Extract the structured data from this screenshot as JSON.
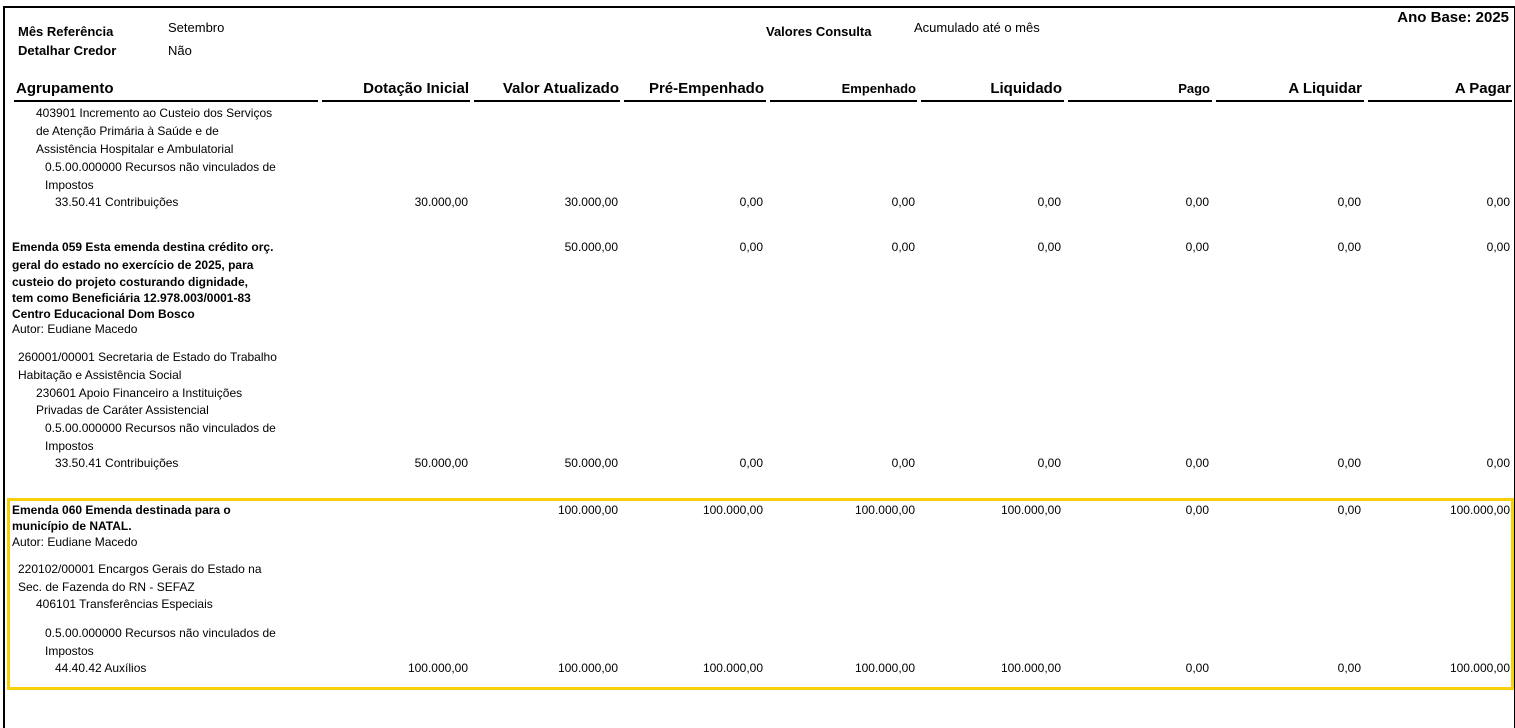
{
  "report": {
    "ano_base": "Ano Base: 2025",
    "mes_referencia_label": "Mês Referência",
    "mes_referencia_value": "Setembro",
    "detalhar_credor_label": "Detalhar Credor",
    "detalhar_credor_value": "Não",
    "valores_consulta_label": "Valores Consulta",
    "valores_consulta_value": "Acumulado até o mês"
  },
  "columns": [
    "Agrupamento",
    "Dotação Inicial",
    "Valor Atualizado",
    "Pré-Empenhado",
    "Empenhado",
    "Liquidado",
    "Pago",
    "A Liquidar",
    "A Pagar"
  ],
  "highlight_color": "#f7cf0a",
  "blocks": [
    {
      "lines": [
        {
          "text": "403901 Incremento ao Custeio dos Serviços",
          "level": 3,
          "bold": false
        },
        {
          "text": "de Atenção Primária à Saúde e de",
          "level": 3,
          "bold": false
        },
        {
          "text": "Assistência Hospitalar e Ambulatorial",
          "level": 3,
          "bold": false
        },
        {
          "text": "0.5.00.000000 Recursos não vinculados de",
          "level": 4,
          "bold": false
        },
        {
          "text": "Impostos",
          "level": 4,
          "bold": false
        },
        {
          "text": "33.50.41 Contribuições",
          "level": 5,
          "bold": false
        }
      ],
      "value_rows": [
        {
          "line": 5,
          "values": [
            "30.000,00",
            "30.000,00",
            "0,00",
            "0,00",
            "0,00",
            "0,00",
            "0,00",
            "0,00"
          ]
        }
      ]
    },
    {
      "lines": [
        {
          "text": "Emenda 059 Esta emenda destina crédito orç.",
          "level": 0,
          "bold": true
        },
        {
          "text": "geral do estado no exercício de 2025, para",
          "level": 0,
          "bold": true
        },
        {
          "text": "custeio do projeto costurando dignidade,",
          "level": 0,
          "bold": true
        },
        {
          "text": "tem como Beneficiária 12.978.003/0001-83",
          "level": 0,
          "bold": true
        },
        {
          "text": "Centro Educacional Dom Bosco",
          "level": 0,
          "bold": true
        },
        {
          "text": "Autor:  Eudiane Macedo",
          "level": 0,
          "bold": false
        },
        {
          "text": "260001/00001 Secretaria de Estado do Trabalho",
          "level": 1,
          "bold": false
        },
        {
          "text": "Habitação e Assistência Social",
          "level": 1,
          "bold": false
        },
        {
          "text": "230601 Apoio Financeiro a Instituições",
          "level": 3,
          "bold": false
        },
        {
          "text": "Privadas de Caráter Assistencial",
          "level": 3,
          "bold": false
        },
        {
          "text": "0.5.00.000000 Recursos não vinculados de",
          "level": 4,
          "bold": false
        },
        {
          "text": "Impostos",
          "level": 4,
          "bold": false
        },
        {
          "text": "33.50.41 Contribuições",
          "level": 5,
          "bold": false
        }
      ],
      "value_rows": [
        {
          "line": 0,
          "values": [
            "",
            "50.000,00",
            "0,00",
            "0,00",
            "0,00",
            "0,00",
            "0,00",
            "0,00"
          ]
        },
        {
          "line": 12,
          "values": [
            "50.000,00",
            "50.000,00",
            "0,00",
            "0,00",
            "0,00",
            "0,00",
            "0,00",
            "0,00"
          ]
        }
      ]
    },
    {
      "lines": [
        {
          "text": "Emenda 060 Emenda destinada para o",
          "level": 0,
          "bold": true
        },
        {
          "text": "município de NATAL.",
          "level": 0,
          "bold": true
        },
        {
          "text": "Autor:  Eudiane Macedo",
          "level": 0,
          "bold": false
        },
        {
          "text": "220102/00001 Encargos Gerais do Estado na",
          "level": 1,
          "bold": false
        },
        {
          "text": "Sec. de Fazenda do RN - SEFAZ",
          "level": 1,
          "bold": false
        },
        {
          "text": "406101 Transferências Especiais",
          "level": 3,
          "bold": false
        },
        {
          "text": "0.5.00.000000 Recursos não vinculados de",
          "level": 4,
          "bold": false
        },
        {
          "text": "Impostos",
          "level": 4,
          "bold": false
        },
        {
          "text": "44.40.42 Auxílios",
          "level": 5,
          "bold": false
        }
      ],
      "value_rows": [
        {
          "line": 0,
          "values": [
            "",
            "100.000,00",
            "100.000,00",
            "100.000,00",
            "100.000,00",
            "0,00",
            "0,00",
            "100.000,00"
          ]
        },
        {
          "line": 8,
          "values": [
            "100.000,00",
            "100.000,00",
            "100.000,00",
            "100.000,00",
            "100.000,00",
            "0,00",
            "0,00",
            "100.000,00"
          ]
        }
      ]
    }
  ]
}
